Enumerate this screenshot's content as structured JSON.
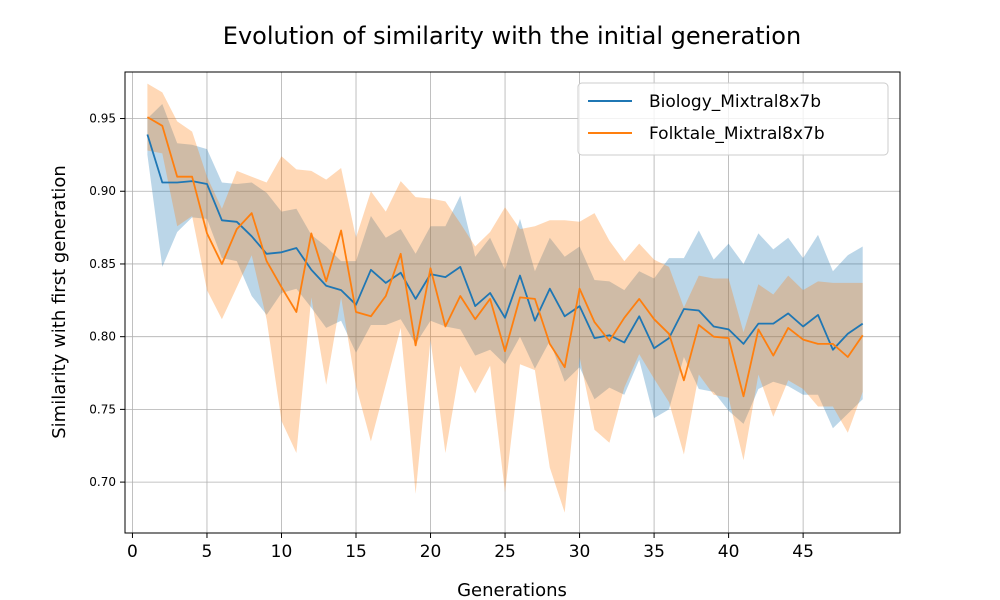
{
  "chart_data": {
    "type": "line",
    "title": "Evolution of similarity with the initial generation",
    "xlabel": "Generations",
    "ylabel": "Similarity with first generation",
    "xlim": [
      -0.5,
      51.5
    ],
    "ylim": [
      0.665,
      0.982
    ],
    "xticks": [
      0,
      5,
      10,
      15,
      20,
      25,
      30,
      35,
      40,
      45
    ],
    "yticks": [
      0.7,
      0.75,
      0.8,
      0.85,
      0.9,
      0.95
    ],
    "ytick_labels": [
      "0.70",
      "0.75",
      "0.80",
      "0.85",
      "0.90",
      "0.95"
    ],
    "grid": true,
    "legend_position": "top-right",
    "x": [
      1,
      2,
      3,
      4,
      5,
      6,
      7,
      8,
      9,
      10,
      11,
      12,
      13,
      14,
      15,
      16,
      17,
      18,
      19,
      20,
      21,
      22,
      23,
      24,
      25,
      26,
      27,
      28,
      29,
      30,
      31,
      32,
      33,
      34,
      35,
      36,
      37,
      38,
      39,
      40,
      41,
      42,
      43,
      44,
      45,
      46,
      47,
      48,
      49
    ],
    "series": [
      {
        "name": "Biology_Mixtral8x7b",
        "color": "#1f77b4",
        "values": [
          0.939,
          0.906,
          0.906,
          0.907,
          0.905,
          0.88,
          0.879,
          0.869,
          0.857,
          0.858,
          0.861,
          0.846,
          0.835,
          0.832,
          0.822,
          0.846,
          0.837,
          0.844,
          0.826,
          0.843,
          0.841,
          0.848,
          0.821,
          0.83,
          0.813,
          0.842,
          0.811,
          0.833,
          0.814,
          0.821,
          0.799,
          0.801,
          0.796,
          0.814,
          0.792,
          0.799,
          0.819,
          0.818,
          0.807,
          0.805,
          0.795,
          0.809,
          0.809,
          0.816,
          0.807,
          0.815,
          0.791,
          0.802,
          0.809
        ],
        "lower": [
          0.925,
          0.848,
          0.872,
          0.882,
          0.881,
          0.854,
          0.852,
          0.828,
          0.815,
          0.83,
          0.833,
          0.82,
          0.806,
          0.811,
          0.789,
          0.808,
          0.808,
          0.812,
          0.795,
          0.811,
          0.807,
          0.805,
          0.787,
          0.791,
          0.781,
          0.8,
          0.778,
          0.797,
          0.769,
          0.779,
          0.757,
          0.765,
          0.76,
          0.784,
          0.744,
          0.75,
          0.786,
          0.764,
          0.762,
          0.749,
          0.74,
          0.764,
          0.769,
          0.766,
          0.76,
          0.76,
          0.737,
          0.747,
          0.757
        ],
        "upper": [
          0.95,
          0.96,
          0.933,
          0.932,
          0.929,
          0.906,
          0.905,
          0.906,
          0.899,
          0.886,
          0.888,
          0.87,
          0.862,
          0.852,
          0.852,
          0.883,
          0.868,
          0.874,
          0.857,
          0.876,
          0.876,
          0.897,
          0.855,
          0.868,
          0.846,
          0.881,
          0.845,
          0.868,
          0.855,
          0.862,
          0.839,
          0.838,
          0.832,
          0.845,
          0.84,
          0.854,
          0.854,
          0.873,
          0.853,
          0.864,
          0.85,
          0.871,
          0.86,
          0.868,
          0.854,
          0.87,
          0.845,
          0.856,
          0.862
        ]
      },
      {
        "name": "Folktale_Mixtral8x7b",
        "color": "#ff7f0e",
        "values": [
          0.951,
          0.945,
          0.91,
          0.91,
          0.871,
          0.85,
          0.874,
          0.885,
          0.852,
          0.834,
          0.817,
          0.871,
          0.838,
          0.873,
          0.817,
          0.814,
          0.828,
          0.857,
          0.794,
          0.847,
          0.807,
          0.828,
          0.812,
          0.826,
          0.79,
          0.827,
          0.826,
          0.795,
          0.779,
          0.833,
          0.81,
          0.797,
          0.813,
          0.826,
          0.812,
          0.802,
          0.77,
          0.808,
          0.8,
          0.799,
          0.759,
          0.805,
          0.787,
          0.806,
          0.798,
          0.795,
          0.795,
          0.786,
          0.801
        ],
        "lower": [
          0.928,
          0.926,
          0.876,
          0.883,
          0.832,
          0.812,
          0.834,
          0.856,
          0.812,
          0.742,
          0.72,
          0.827,
          0.767,
          0.827,
          0.766,
          0.728,
          0.767,
          0.806,
          0.692,
          0.798,
          0.72,
          0.78,
          0.761,
          0.78,
          0.693,
          0.781,
          0.777,
          0.71,
          0.679,
          0.786,
          0.736,
          0.727,
          0.765,
          0.788,
          0.771,
          0.755,
          0.719,
          0.774,
          0.76,
          0.758,
          0.715,
          0.774,
          0.745,
          0.77,
          0.764,
          0.752,
          0.752,
          0.734,
          0.762
        ],
        "upper": [
          0.974,
          0.968,
          0.948,
          0.941,
          0.91,
          0.888,
          0.914,
          0.91,
          0.906,
          0.924,
          0.915,
          0.914,
          0.908,
          0.916,
          0.868,
          0.9,
          0.886,
          0.907,
          0.896,
          0.895,
          0.893,
          0.878,
          0.862,
          0.872,
          0.889,
          0.874,
          0.876,
          0.88,
          0.88,
          0.879,
          0.885,
          0.866,
          0.852,
          0.864,
          0.853,
          0.848,
          0.82,
          0.842,
          0.84,
          0.84,
          0.803,
          0.836,
          0.829,
          0.842,
          0.832,
          0.838,
          0.837,
          0.837,
          0.837
        ]
      }
    ]
  }
}
